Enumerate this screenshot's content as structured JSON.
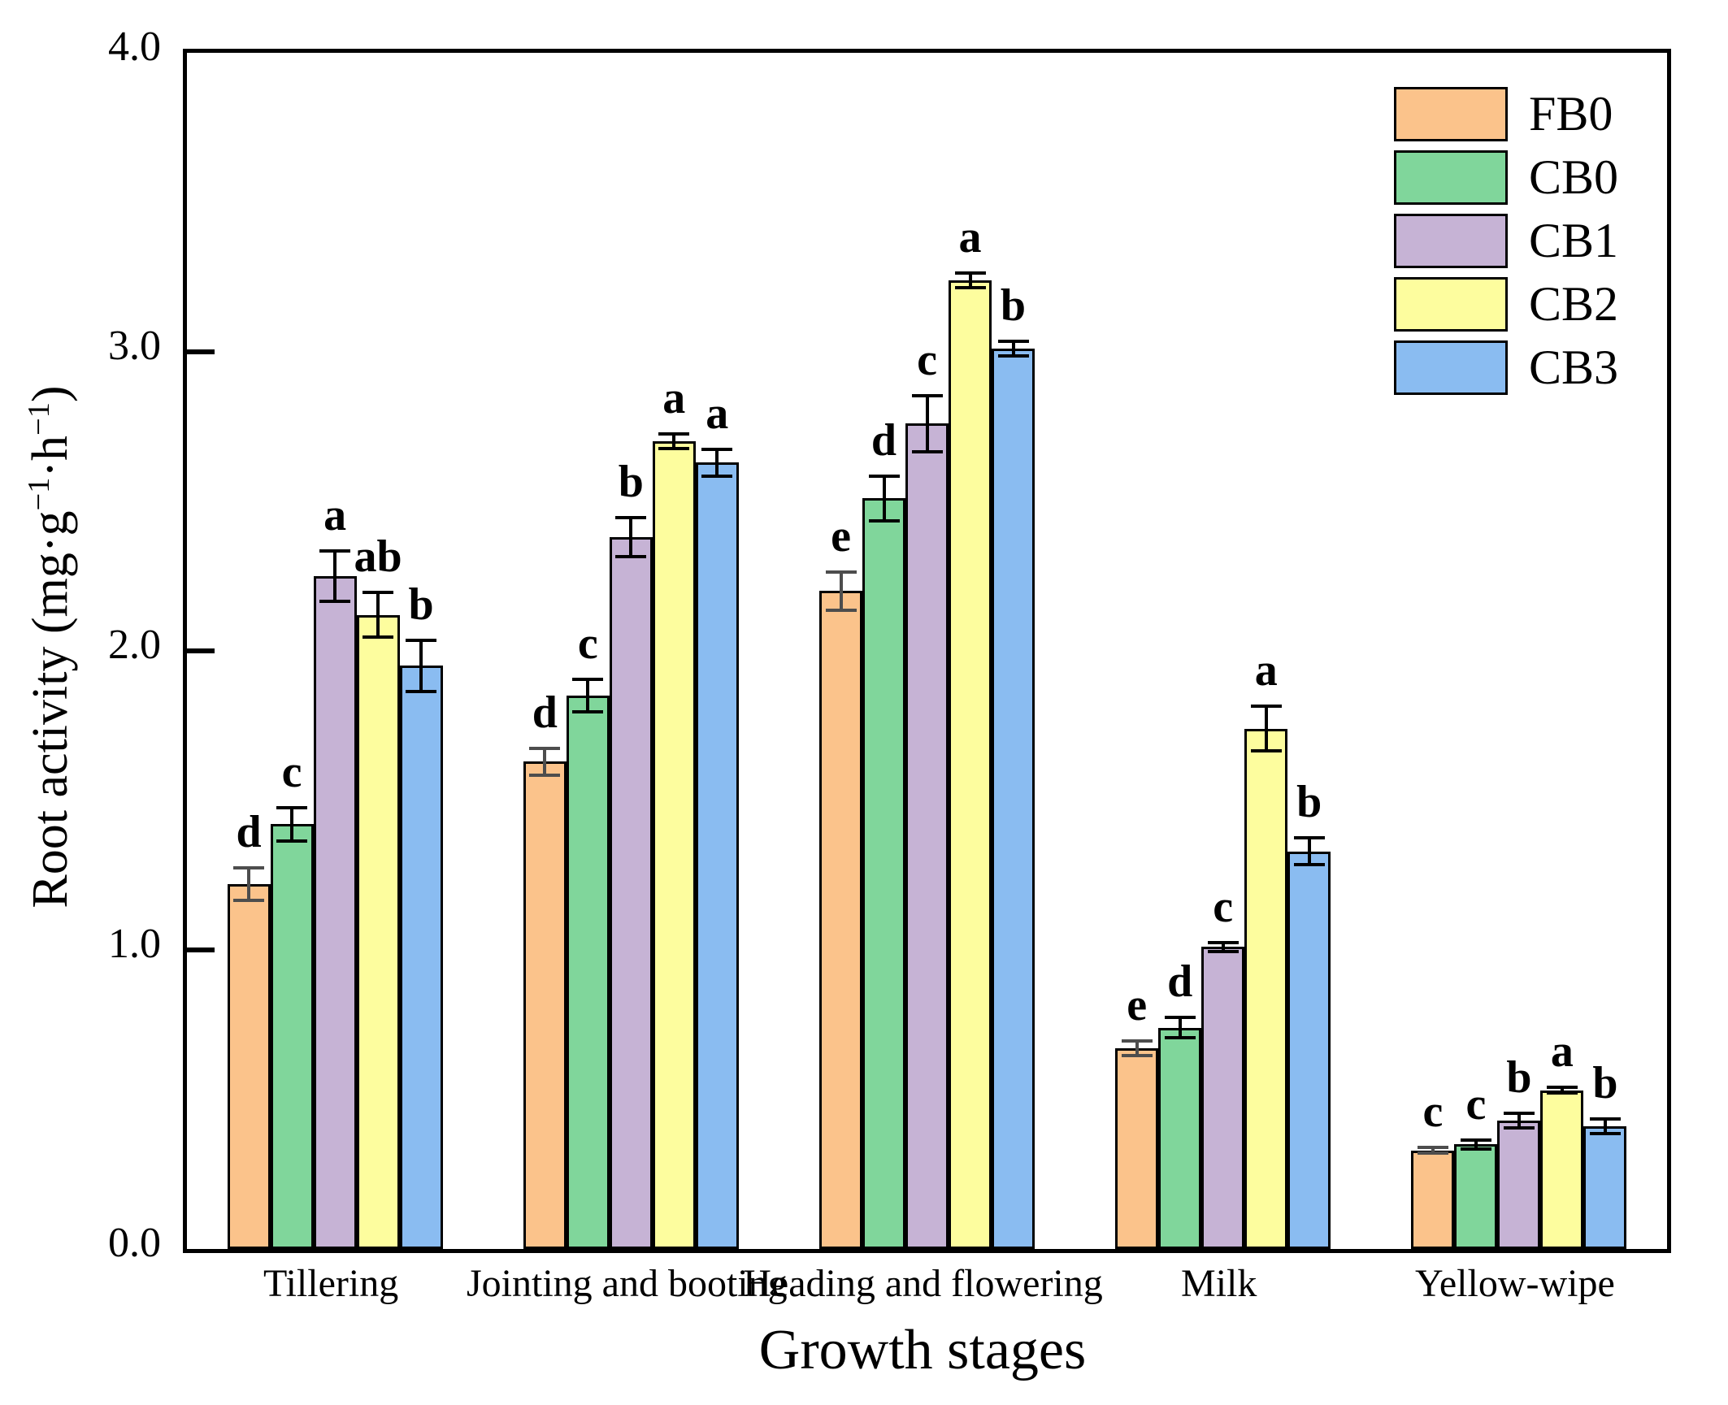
{
  "chart_data": {
    "type": "bar",
    "title": "",
    "xlabel": "Growth stages",
    "ylabel": "Root activity (mg·g⁻¹·h⁻¹)",
    "ylabel_parts": {
      "prefix": "Root activity (mg·g",
      "sup1": "−1",
      "mid": "·h",
      "sup2": "−1",
      "suffix": ")"
    },
    "ylim": [
      0.0,
      4.0
    ],
    "yticks": [
      "0.0",
      "1.0",
      "2.0",
      "3.0",
      "4.0"
    ],
    "grid": false,
    "legend_position": "top-right-inside",
    "frame_color": "#000000",
    "background": "#ffffff",
    "categories": [
      "Tillering",
      "Jointing and booting",
      "Heading and flowering",
      "Milk",
      "Yellow-wipe"
    ],
    "series": [
      {
        "name": "FB0",
        "color": "#FBC38B",
        "error_color": "#4d4d4d",
        "values": [
          1.22,
          1.63,
          2.2,
          0.67,
          0.33
        ],
        "errors": [
          0.06,
          0.05,
          0.07,
          0.03,
          0.015
        ],
        "letters": [
          "d",
          "d",
          "e",
          "e",
          "c"
        ]
      },
      {
        "name": "CB0",
        "color": "#80D69B",
        "error_color": "#000000",
        "values": [
          1.42,
          1.85,
          2.51,
          0.74,
          0.35
        ],
        "errors": [
          0.06,
          0.06,
          0.08,
          0.04,
          0.02
        ],
        "letters": [
          "c",
          "c",
          "d",
          "d",
          "c"
        ]
      },
      {
        "name": "CB1",
        "color": "#C6B3D5",
        "error_color": "#000000",
        "values": [
          2.25,
          2.38,
          2.76,
          1.01,
          0.43
        ],
        "errors": [
          0.09,
          0.07,
          0.1,
          0.02,
          0.03
        ],
        "letters": [
          "a",
          "b",
          "c",
          "c",
          "b"
        ]
      },
      {
        "name": "CB2",
        "color": "#FDFD9E",
        "error_color": "#000000",
        "values": [
          2.12,
          2.7,
          3.24,
          1.74,
          0.53
        ],
        "errors": [
          0.08,
          0.03,
          0.03,
          0.08,
          0.015
        ],
        "letters": [
          "ab",
          "a",
          "a",
          "a",
          "a"
        ]
      },
      {
        "name": "CB3",
        "color": "#8ABCF1",
        "error_color": "#000000",
        "values": [
          1.95,
          2.63,
          3.01,
          1.33,
          0.41
        ],
        "errors": [
          0.09,
          0.05,
          0.03,
          0.05,
          0.03
        ],
        "letters": [
          "b",
          "a",
          "b",
          "b",
          "b"
        ]
      }
    ]
  }
}
